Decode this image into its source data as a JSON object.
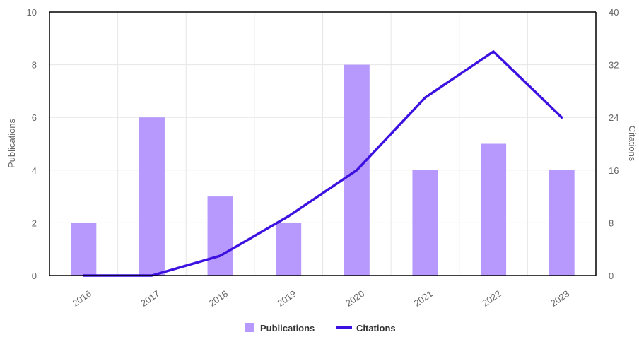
{
  "chart_data": {
    "type": "bar",
    "categories": [
      "2016",
      "2017",
      "2018",
      "2019",
      "2020",
      "2021",
      "2022",
      "2023"
    ],
    "series": [
      {
        "name": "Publications",
        "type": "bar",
        "axis": "left",
        "values": [
          2,
          6,
          3,
          2,
          8,
          4,
          5,
          4
        ]
      },
      {
        "name": "Citations",
        "type": "line",
        "axis": "right",
        "values": [
          0,
          0,
          3,
          9,
          16,
          27,
          34,
          24
        ]
      }
    ],
    "ylabel": "Publications",
    "ylim": [
      0,
      10
    ],
    "yticks": [
      0,
      2,
      4,
      6,
      8,
      10
    ],
    "y2label": "Citations",
    "y2lim": [
      0,
      40
    ],
    "y2ticks": [
      0,
      8,
      16,
      24,
      32,
      40
    ],
    "grid": true,
    "legend": "bottom-center",
    "colors": {
      "bar": "#b799fd",
      "line": "#3d12e0",
      "grid": "#e6e6e6",
      "axis": "#000000"
    }
  }
}
